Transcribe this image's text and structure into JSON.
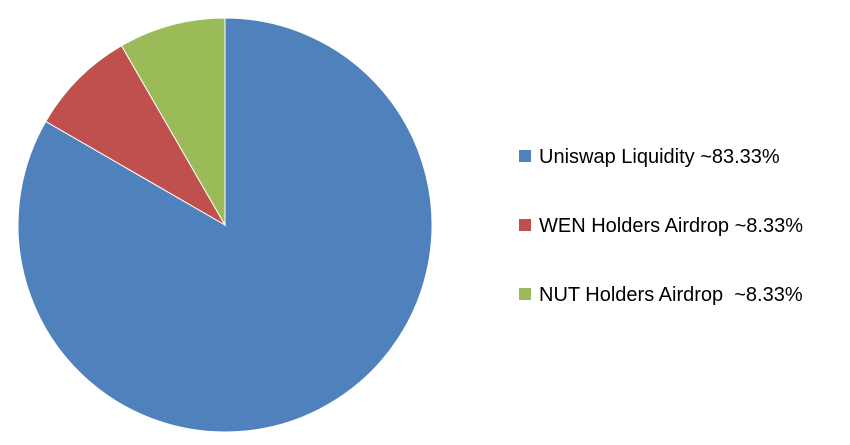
{
  "chart_data": {
    "type": "pie",
    "slices": [
      {
        "label": "Uniswap Liquidity ~83.33%",
        "value": 83.33,
        "color": "#4F81BD"
      },
      {
        "label": "WEN Holders Airdrop ~8.33%",
        "value": 8.33,
        "color": "#C0504D"
      },
      {
        "label": "NUT Holders Airdrop  ~8.33%",
        "value": 8.33,
        "color": "#9BBB59"
      }
    ],
    "legend_position": "right",
    "start_angle": "12 o'clock",
    "direction": "clockwise"
  }
}
